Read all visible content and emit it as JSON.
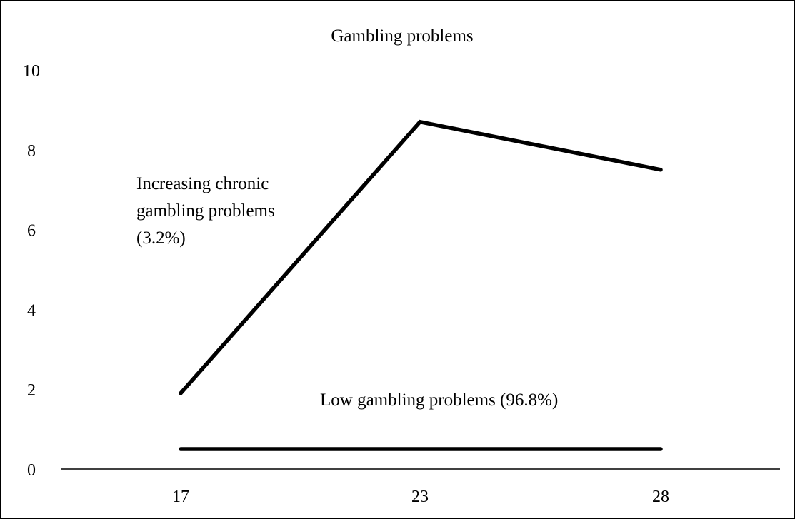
{
  "chart_data": {
    "type": "line",
    "title": "Gambling problems",
    "xlabel": "",
    "ylabel": "",
    "categories": [
      "17",
      "23",
      "28"
    ],
    "y_ticks": [
      "0",
      "2",
      "4",
      "6",
      "8",
      "10"
    ],
    "ylim": [
      0,
      10
    ],
    "grid": false,
    "legend": "none",
    "series": [
      {
        "name": "Increasing chronic gambling problems (3.2%)",
        "label_lines": [
          "Increasing chronic",
          "gambling problems",
          "(3.2%)"
        ],
        "values": [
          1.9,
          8.7,
          7.5
        ],
        "color": "#000000"
      },
      {
        "name": "Low gambling problems (96.8%)",
        "label_lines": [
          "Low gambling problems (96.8%)"
        ],
        "values": [
          0.5,
          0.5,
          0.5
        ],
        "color": "#000000"
      }
    ]
  }
}
